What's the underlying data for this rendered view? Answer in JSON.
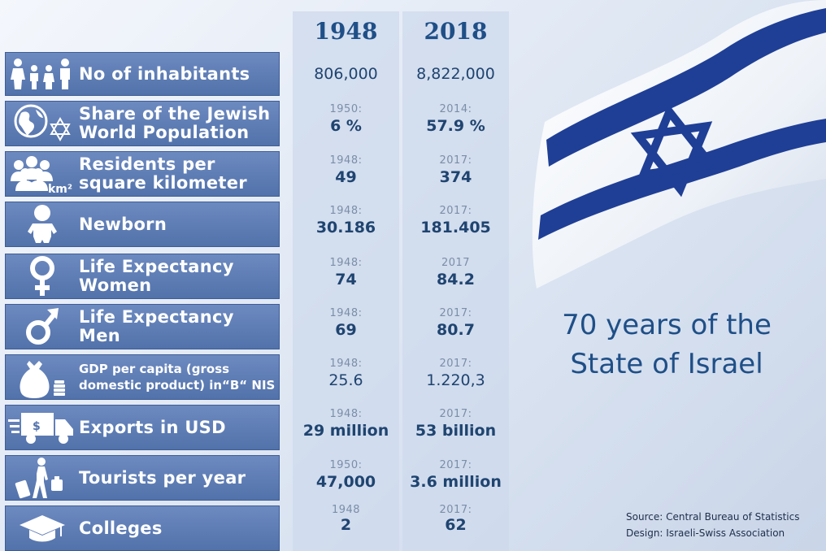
{
  "title": "70 years of the State of Israel",
  "years": [
    "1948",
    "2018"
  ],
  "rows": [
    {
      "label": "No of inhabitants",
      "icon": "family-icon",
      "c1_year": "",
      "c1_value": "806,000",
      "c2_year": "",
      "c2_value": "8,822,000"
    },
    {
      "label": "Share of the Jewish World Population",
      "icon": "globe-star-of-david-icon",
      "c1_year": "1950:",
      "c1_value": "6 %",
      "c2_year": "2014:",
      "c2_value": "57.9 %"
    },
    {
      "label": "Residents per square kilometer",
      "icon": "people-km2-icon",
      "c1_year": "1948:",
      "c1_value": "49",
      "c2_year": "2017:",
      "c2_value": "374"
    },
    {
      "label": "Newborn",
      "icon": "baby-icon",
      "c1_year": "1948:",
      "c1_value": "30.186",
      "c2_year": "2017:",
      "c2_value": "181.405"
    },
    {
      "label": "Life Expectancy Women",
      "icon": "female-symbol-icon",
      "c1_year": "1948:",
      "c1_value": "74",
      "c2_year": "2017",
      "c2_value": "84.2"
    },
    {
      "label": "Life Expectancy Men",
      "icon": "male-symbol-icon",
      "c1_year": "1948:",
      "c1_value": "69",
      "c2_year": "2017:",
      "c2_value": "80.7"
    },
    {
      "label": "GDP per capita (gross domestic product) in“B“ NIS",
      "icon": "money-bag-icon",
      "c1_year": "1948:",
      "c1_value": "25.6",
      "c2_year": "2017:",
      "c2_value": "1.220,3"
    },
    {
      "label": "Exports in USD",
      "icon": "delivery-truck-icon",
      "c1_year": "1948:",
      "c1_value": "29 million",
      "c2_year": "2017:",
      "c2_value": "53 billion"
    },
    {
      "label": "Tourists per year",
      "icon": "traveler-luggage-icon",
      "c1_year": "1950:",
      "c1_value": "47,000",
      "c2_year": "2017:",
      "c2_value": "3.6 million"
    },
    {
      "label": "Colleges",
      "icon": "graduation-cap-icon",
      "c1_year": "1948",
      "c1_value": "2",
      "c2_year": "2017:",
      "c2_value": "62"
    }
  ],
  "km2_text": "km²",
  "credits": {
    "source": "Source: Central Bureau of Statistics",
    "design": "Design: Israeli-Swiss Association"
  },
  "colors": {
    "accent": "#1f4f87",
    "row_bg": "#5f7fb8",
    "flag_blue": "#1f3f96"
  }
}
